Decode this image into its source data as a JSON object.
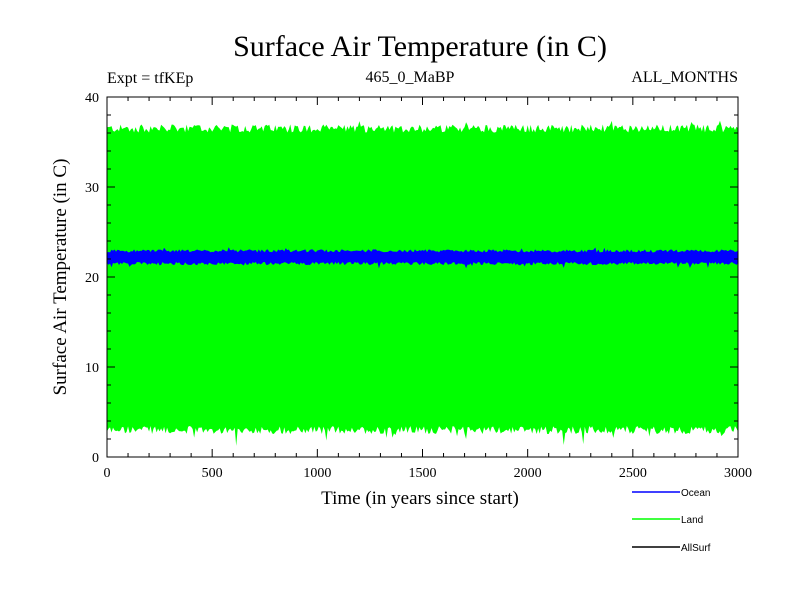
{
  "chart_data": {
    "type": "area",
    "title": "Surface Air Temperature (in C)",
    "subtitle_left": "Expt = tfKEp",
    "subtitle_center": "465_0_MaBP",
    "subtitle_right": "ALL_MONTHS",
    "xlabel": "Time (in years since start)",
    "ylabel": "Surface Air Temperature (in C)",
    "xlim": [
      0,
      3000
    ],
    "ylim": [
      0,
      40
    ],
    "xticks": [
      0,
      500,
      1000,
      1500,
      2000,
      2500,
      3000
    ],
    "yticks": [
      0,
      10,
      20,
      30,
      40
    ],
    "grid": false,
    "legend_position": "bottom-right",
    "series": [
      {
        "name": "Ocean",
        "color": "#0000ff",
        "band_low": 21.5,
        "band_high": 22.9,
        "x": [
          0,
          3000
        ]
      },
      {
        "name": "Land",
        "color": "#00ff00",
        "band_low": 3.0,
        "band_high": 36.5,
        "x": [
          0,
          3000
        ]
      },
      {
        "name": "AllSurf",
        "color": "#000000"
      }
    ]
  }
}
